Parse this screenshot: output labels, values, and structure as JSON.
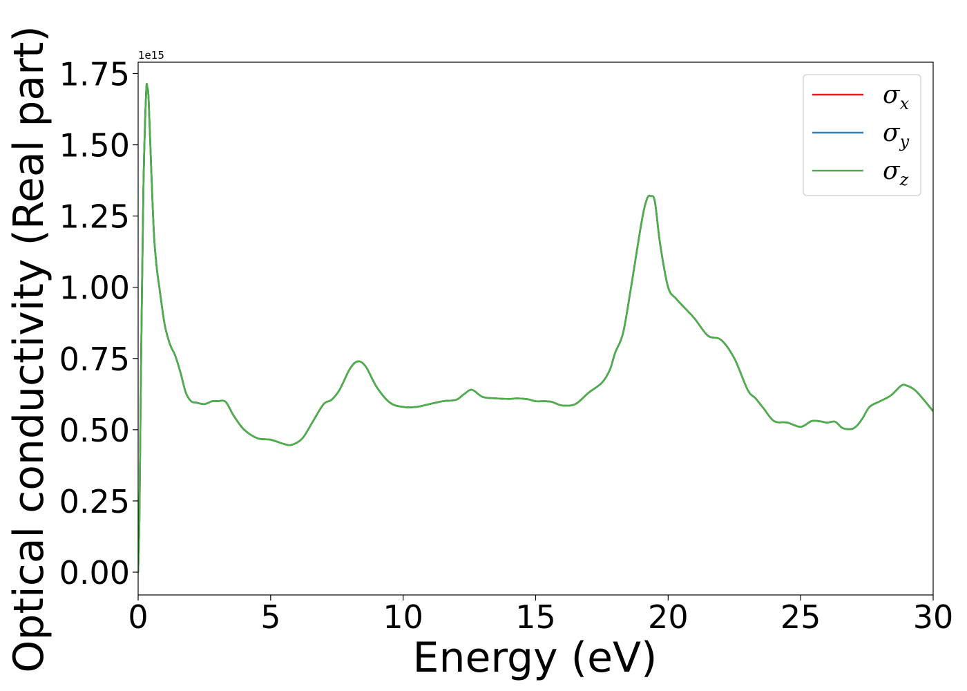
{
  "chart_data": {
    "type": "line",
    "title": "",
    "xlabel": "Energy (eV)",
    "ylabel": "Optical conductivity (Real part)",
    "y_offset_label": "1e15",
    "xlim": [
      0,
      30
    ],
    "ylim": [
      -0.08,
      1.79
    ],
    "xticks": [
      0,
      5,
      10,
      15,
      20,
      25,
      30
    ],
    "xtick_labels": [
      "0",
      "5",
      "10",
      "15",
      "20",
      "25",
      "30"
    ],
    "yticks": [
      0.0,
      0.25,
      0.5,
      0.75,
      1.0,
      1.25,
      1.5,
      1.75
    ],
    "ytick_labels": [
      "0.00",
      "0.25",
      "0.50",
      "0.75",
      "1.00",
      "1.25",
      "1.50",
      "1.75"
    ],
    "grid": false,
    "legend_position": "top-right",
    "x": [
      0.0,
      0.05,
      0.1,
      0.2,
      0.3,
      0.35,
      0.4,
      0.5,
      0.6,
      0.7,
      0.8,
      1.0,
      1.2,
      1.4,
      1.6,
      1.8,
      2.0,
      2.2,
      2.5,
      2.8,
      3.0,
      3.3,
      3.6,
      4.0,
      4.5,
      5.0,
      5.5,
      5.8,
      6.2,
      6.6,
      7.0,
      7.3,
      7.6,
      8.0,
      8.3,
      8.6,
      9.0,
      9.5,
      10.0,
      10.5,
      11.0,
      11.5,
      12.0,
      12.3,
      12.6,
      13.0,
      13.5,
      14.0,
      14.3,
      14.7,
      15.0,
      15.3,
      15.6,
      16.0,
      16.5,
      17.0,
      17.5,
      17.8,
      18.0,
      18.3,
      18.6,
      19.0,
      19.2,
      19.35,
      19.5,
      19.7,
      20.0,
      20.3,
      20.6,
      21.0,
      21.5,
      22.0,
      22.5,
      23.0,
      23.3,
      23.6,
      24.0,
      24.5,
      25.0,
      25.4,
      25.7,
      26.0,
      26.3,
      26.6,
      27.0,
      27.3,
      27.6,
      28.0,
      28.4,
      28.8,
      29.0,
      29.3,
      29.6,
      30.0
    ],
    "series": [
      {
        "name": "σx",
        "color": "#e41a1c",
        "values": [
          0.0,
          0.2,
          0.65,
          1.35,
          1.68,
          1.7,
          1.65,
          1.4,
          1.18,
          1.07,
          1.0,
          0.87,
          0.8,
          0.76,
          0.7,
          0.63,
          0.6,
          0.595,
          0.59,
          0.6,
          0.6,
          0.598,
          0.55,
          0.5,
          0.47,
          0.465,
          0.45,
          0.447,
          0.47,
          0.53,
          0.59,
          0.605,
          0.64,
          0.715,
          0.74,
          0.72,
          0.65,
          0.595,
          0.58,
          0.58,
          0.59,
          0.6,
          0.605,
          0.625,
          0.64,
          0.615,
          0.61,
          0.608,
          0.61,
          0.607,
          0.6,
          0.6,
          0.598,
          0.585,
          0.59,
          0.63,
          0.665,
          0.71,
          0.77,
          0.84,
          1.0,
          1.23,
          1.31,
          1.32,
          1.3,
          1.15,
          1.0,
          0.96,
          0.93,
          0.89,
          0.83,
          0.815,
          0.75,
          0.64,
          0.61,
          0.575,
          0.53,
          0.525,
          0.51,
          0.53,
          0.53,
          0.525,
          0.528,
          0.505,
          0.505,
          0.535,
          0.58,
          0.6,
          0.62,
          0.655,
          0.655,
          0.64,
          0.61,
          0.565
        ]
      },
      {
        "name": "σy",
        "color": "#377eb8",
        "values": [
          0.0,
          0.2,
          0.65,
          1.35,
          1.68,
          1.7,
          1.65,
          1.4,
          1.18,
          1.07,
          1.0,
          0.87,
          0.8,
          0.76,
          0.7,
          0.63,
          0.6,
          0.595,
          0.59,
          0.6,
          0.6,
          0.598,
          0.55,
          0.5,
          0.47,
          0.465,
          0.45,
          0.447,
          0.47,
          0.53,
          0.59,
          0.605,
          0.64,
          0.715,
          0.74,
          0.72,
          0.65,
          0.595,
          0.58,
          0.58,
          0.59,
          0.6,
          0.605,
          0.625,
          0.64,
          0.615,
          0.61,
          0.608,
          0.61,
          0.607,
          0.6,
          0.6,
          0.598,
          0.585,
          0.59,
          0.63,
          0.665,
          0.71,
          0.77,
          0.84,
          1.0,
          1.23,
          1.31,
          1.32,
          1.3,
          1.15,
          1.0,
          0.96,
          0.93,
          0.89,
          0.83,
          0.815,
          0.75,
          0.64,
          0.61,
          0.575,
          0.53,
          0.525,
          0.51,
          0.53,
          0.53,
          0.525,
          0.528,
          0.505,
          0.505,
          0.535,
          0.58,
          0.6,
          0.62,
          0.655,
          0.655,
          0.64,
          0.61,
          0.565
        ]
      },
      {
        "name": "σz",
        "color": "#4daf4a",
        "values": [
          0.0,
          0.2,
          0.65,
          1.35,
          1.68,
          1.7,
          1.65,
          1.4,
          1.18,
          1.07,
          1.0,
          0.87,
          0.8,
          0.76,
          0.7,
          0.63,
          0.6,
          0.595,
          0.59,
          0.6,
          0.6,
          0.598,
          0.55,
          0.5,
          0.47,
          0.465,
          0.45,
          0.447,
          0.47,
          0.53,
          0.59,
          0.605,
          0.64,
          0.715,
          0.74,
          0.72,
          0.65,
          0.595,
          0.58,
          0.58,
          0.59,
          0.6,
          0.605,
          0.625,
          0.64,
          0.615,
          0.61,
          0.608,
          0.61,
          0.607,
          0.6,
          0.6,
          0.598,
          0.585,
          0.59,
          0.63,
          0.665,
          0.71,
          0.77,
          0.84,
          1.0,
          1.23,
          1.31,
          1.32,
          1.3,
          1.15,
          1.0,
          0.96,
          0.93,
          0.89,
          0.83,
          0.815,
          0.75,
          0.64,
          0.61,
          0.575,
          0.53,
          0.525,
          0.51,
          0.53,
          0.53,
          0.525,
          0.528,
          0.505,
          0.505,
          0.535,
          0.58,
          0.6,
          0.62,
          0.655,
          0.655,
          0.64,
          0.61,
          0.565
        ]
      }
    ],
    "legend": [
      {
        "symbol": "σ",
        "subscript": "x",
        "color": "#e41a1c"
      },
      {
        "symbol": "σ",
        "subscript": "y",
        "color": "#377eb8"
      },
      {
        "symbol": "σ",
        "subscript": "z",
        "color": "#4daf4a"
      }
    ]
  }
}
